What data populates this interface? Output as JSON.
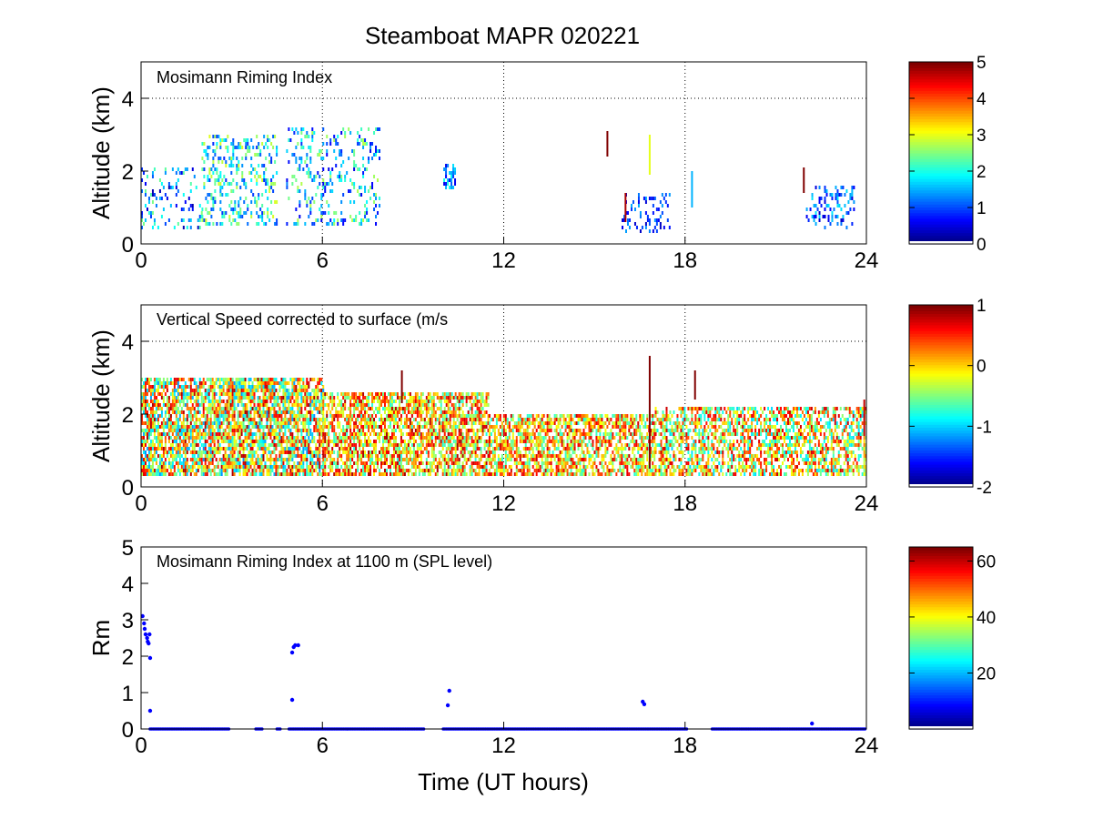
{
  "figure_title": "Steamboat MAPR 020221",
  "colors": {
    "colormap": "jet",
    "scatter": "#0000ff",
    "background": "#ffffff"
  },
  "chart_data": [
    {
      "type": "heatmap",
      "title": "Mosimann Riming Index",
      "xlabel": "",
      "ylabel": "Altitude (km)",
      "xlim": [
        0,
        24
      ],
      "ylim": [
        0,
        5
      ],
      "xticks": [
        "0",
        "6",
        "12",
        "18",
        "24"
      ],
      "yticks": [
        "0",
        "2",
        "4"
      ],
      "grid": "dotted",
      "colorbar": {
        "range": [
          0,
          5
        ],
        "ticks": [
          "0",
          "1",
          "2",
          "3",
          "4",
          "5"
        ]
      },
      "regions": [
        {
          "x": [
            0.0,
            2.0
          ],
          "y": [
            0.4,
            2.1
          ],
          "value_range": [
            0.2,
            2.5
          ],
          "density": 0.18
        },
        {
          "x": [
            2.0,
            4.5
          ],
          "y": [
            0.5,
            3.0
          ],
          "value_range": [
            0.8,
            3.0
          ],
          "density": 0.3
        },
        {
          "x": [
            4.8,
            7.9
          ],
          "y": [
            0.5,
            3.2
          ],
          "value_range": [
            0.5,
            2.8
          ],
          "density": 0.2
        },
        {
          "x": [
            10.0,
            10.4
          ],
          "y": [
            1.5,
            2.2
          ],
          "value_range": [
            0.5,
            2.0
          ],
          "density": 0.45
        },
        {
          "x": [
            15.9,
            17.5
          ],
          "y": [
            0.3,
            1.4
          ],
          "value_range": [
            0.3,
            1.5
          ],
          "density": 0.25
        },
        {
          "x": [
            22.0,
            23.6
          ],
          "y": [
            0.4,
            1.6
          ],
          "value_range": [
            0.3,
            1.8
          ],
          "density": 0.25
        }
      ],
      "streaks": [
        {
          "x": 15.4,
          "y": [
            2.4,
            3.1
          ],
          "value": 5.0
        },
        {
          "x": 16.0,
          "y": [
            0.6,
            1.4
          ],
          "value": 4.8
        },
        {
          "x": 16.8,
          "y": [
            1.9,
            3.0
          ],
          "value": 3.0
        },
        {
          "x": 18.2,
          "y": [
            1.0,
            2.0
          ],
          "value": 1.5
        },
        {
          "x": 21.9,
          "y": [
            1.4,
            2.1
          ],
          "value": 5.0
        }
      ]
    },
    {
      "type": "heatmap",
      "title": "Vertical Speed corrected to surface (m/s",
      "xlabel": "",
      "ylabel": "Altitude (km)",
      "xlim": [
        0,
        24
      ],
      "ylim": [
        0,
        5
      ],
      "xticks": [
        "0",
        "6",
        "12",
        "18",
        "24"
      ],
      "yticks": [
        "0",
        "2",
        "4"
      ],
      "grid": "dotted",
      "colorbar": {
        "range": [
          -2,
          1
        ],
        "ticks": [
          "1",
          "0",
          "-1",
          "-2"
        ]
      },
      "regions": [
        {
          "x": [
            0.0,
            6.0
          ],
          "y": [
            0.3,
            3.0
          ],
          "value_range": [
            -1.2,
            0.9
          ],
          "density": 0.78
        },
        {
          "x": [
            6.0,
            11.5
          ],
          "y": [
            0.3,
            2.6
          ],
          "value_range": [
            -0.8,
            0.9
          ],
          "density": 0.72
        },
        {
          "x": [
            11.5,
            17.0
          ],
          "y": [
            0.3,
            2.0
          ],
          "value_range": [
            -0.8,
            0.8
          ],
          "density": 0.68
        },
        {
          "x": [
            17.0,
            24.0
          ],
          "y": [
            0.3,
            2.2
          ],
          "value_range": [
            -1.0,
            0.8
          ],
          "density": 0.62
        }
      ],
      "streaks": [
        {
          "x": 8.6,
          "y": [
            2.3,
            3.2
          ],
          "value": 1.0
        },
        {
          "x": 16.8,
          "y": [
            0.5,
            3.6
          ],
          "value": 1.0
        },
        {
          "x": 18.3,
          "y": [
            2.4,
            3.2
          ],
          "value": 1.0
        },
        {
          "x": 23.9,
          "y": [
            1.4,
            2.4
          ],
          "value": 0.8
        }
      ]
    },
    {
      "type": "scatter",
      "title": "Mosimann Riming Index at 1100 m (SPL level)",
      "xlabel": "Time (UT hours)",
      "ylabel": "Rm",
      "xlim": [
        0,
        24
      ],
      "ylim": [
        0,
        5
      ],
      "xticks": [
        "0",
        "6",
        "12",
        "18",
        "24"
      ],
      "yticks": [
        "0",
        "1",
        "2",
        "3",
        "4",
        "5"
      ],
      "colorbar": {
        "range": [
          0,
          65
        ],
        "ticks": [
          "20",
          "40",
          "60"
        ]
      },
      "zero_segments": [
        [
          0.3,
          2.9
        ],
        [
          3.8,
          4.0
        ],
        [
          4.5,
          4.6
        ],
        [
          4.9,
          9.4
        ],
        [
          10.0,
          18.1
        ],
        [
          18.9,
          24.0
        ]
      ],
      "points": [
        {
          "x": 0.05,
          "y": 3.1
        },
        {
          "x": 0.1,
          "y": 2.9
        },
        {
          "x": 0.12,
          "y": 2.75
        },
        {
          "x": 0.15,
          "y": 2.6
        },
        {
          "x": 0.2,
          "y": 2.5
        },
        {
          "x": 0.22,
          "y": 2.4
        },
        {
          "x": 0.25,
          "y": 2.35
        },
        {
          "x": 0.28,
          "y": 2.6
        },
        {
          "x": 0.3,
          "y": 1.95
        },
        {
          "x": 0.3,
          "y": 0.5
        },
        {
          "x": 5.0,
          "y": 2.1
        },
        {
          "x": 5.05,
          "y": 2.25
        },
        {
          "x": 5.1,
          "y": 2.3
        },
        {
          "x": 5.2,
          "y": 2.3
        },
        {
          "x": 5.0,
          "y": 0.8
        },
        {
          "x": 10.2,
          "y": 1.05
        },
        {
          "x": 10.15,
          "y": 0.65
        },
        {
          "x": 16.6,
          "y": 0.75
        },
        {
          "x": 16.65,
          "y": 0.68
        },
        {
          "x": 22.2,
          "y": 0.15
        }
      ]
    }
  ]
}
